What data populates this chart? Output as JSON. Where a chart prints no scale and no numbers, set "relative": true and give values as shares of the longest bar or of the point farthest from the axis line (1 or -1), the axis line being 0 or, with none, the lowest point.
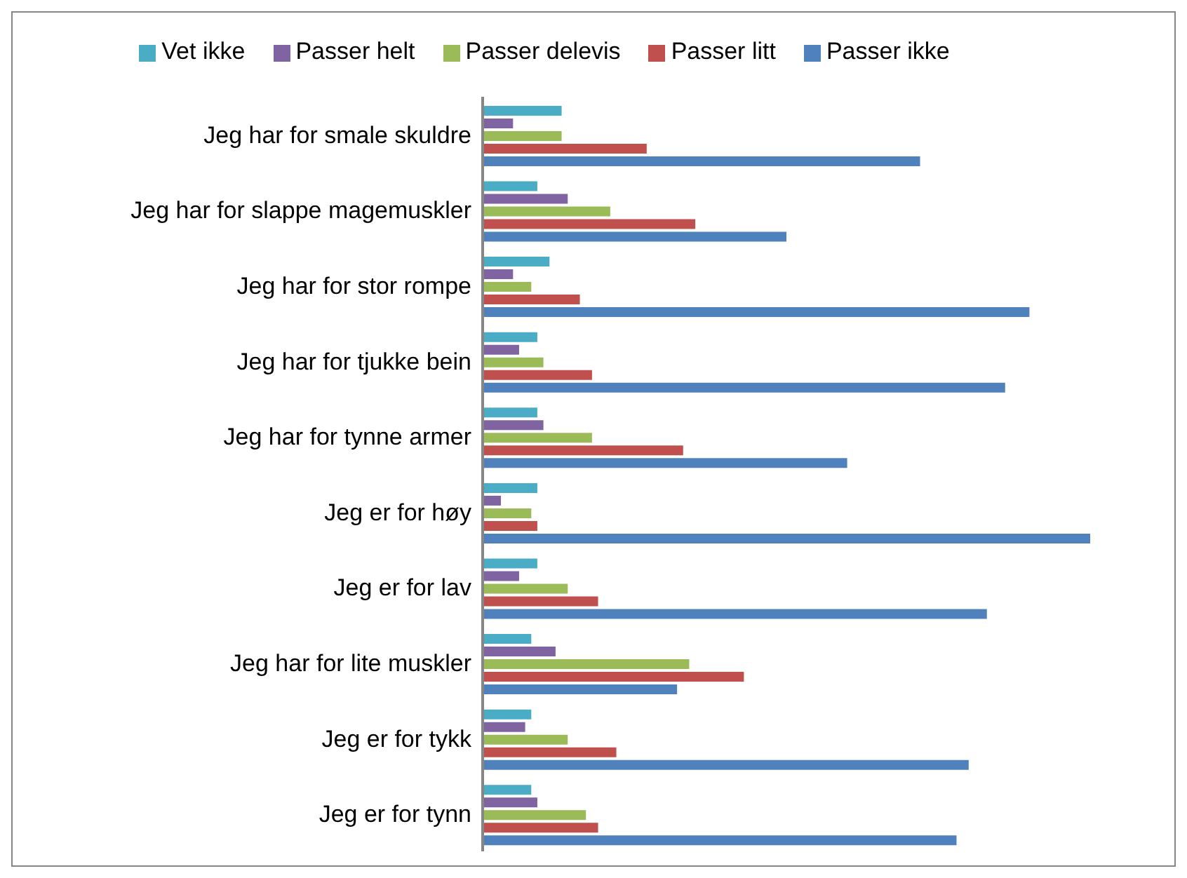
{
  "chart_data": {
    "type": "bar",
    "orientation": "horizontal",
    "relative": true,
    "legend": "top",
    "categories": [
      "Jeg har for smale skuldre",
      "Jeg har for slappe magemuskler",
      "Jeg har for stor rompe",
      "Jeg har for tjukke bein",
      "Jeg har for tynne armer",
      "Jeg er for høy",
      "Jeg er for lav",
      "Jeg har for lite muskler",
      "Jeg er for tykk",
      "Jeg er for tynn"
    ],
    "series": [
      {
        "name": "Vet ikke",
        "color": "#4bacc6",
        "values": [
          0.13,
          0.09,
          0.11,
          0.09,
          0.09,
          0.09,
          0.09,
          0.08,
          0.08,
          0.08
        ]
      },
      {
        "name": "Passer helt",
        "color": "#8064a2",
        "values": [
          0.05,
          0.14,
          0.05,
          0.06,
          0.1,
          0.03,
          0.06,
          0.12,
          0.07,
          0.09
        ]
      },
      {
        "name": "Passer delevis",
        "color": "#9bbb59",
        "values": [
          0.13,
          0.21,
          0.08,
          0.1,
          0.18,
          0.08,
          0.14,
          0.34,
          0.14,
          0.17
        ]
      },
      {
        "name": "Passer litt",
        "color": "#c0504d",
        "values": [
          0.27,
          0.35,
          0.16,
          0.18,
          0.33,
          0.09,
          0.19,
          0.43,
          0.22,
          0.19
        ]
      },
      {
        "name": "Passer ikke",
        "color": "#4f81bd",
        "values": [
          0.72,
          0.5,
          0.9,
          0.86,
          0.6,
          1,
          0.83,
          0.32,
          0.8,
          0.78
        ]
      }
    ]
  }
}
